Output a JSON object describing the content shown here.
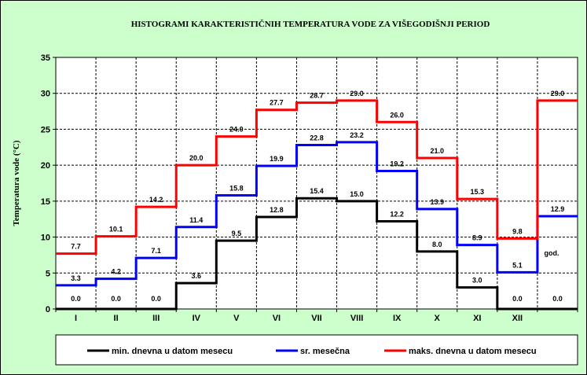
{
  "chart_data": {
    "type": "line",
    "step": true,
    "title": "HISTOGRAMI KARAKTERISTIČNIH TEMPERATURA VODE ZA VIŠEGODIŠNJI PERIOD",
    "ylabel": "Temperatura vode (°C)",
    "xlabel": "",
    "ylim": [
      0,
      35
    ],
    "yticks": [
      0,
      5,
      10,
      15,
      20,
      25,
      30,
      35
    ],
    "grid": true,
    "legend_position": "bottom",
    "categories": [
      "I",
      "II",
      "III",
      "IV",
      "V",
      "VI",
      "VII",
      "VIII",
      "IX",
      "X",
      "XI",
      "XII",
      ""
    ],
    "annual_label": "god.",
    "series": [
      {
        "name": "min. dnevna u datom mesecu",
        "color": "#000000",
        "values": [
          0.0,
          0.0,
          0.0,
          3.6,
          9.5,
          12.8,
          15.4,
          15.0,
          12.2,
          8.0,
          3.0,
          0.0,
          0.0
        ],
        "labels": [
          "0.0",
          "0.0",
          "0.0",
          "3.6",
          "9.5",
          "12.8",
          "15.4",
          "15.0",
          "12.2",
          "8.0",
          "3.0",
          "0.0",
          "0.0"
        ]
      },
      {
        "name": "sr. mesečna",
        "color": "#0000ff",
        "values": [
          3.3,
          4.2,
          7.1,
          11.4,
          15.8,
          19.9,
          22.8,
          23.2,
          19.2,
          13.9,
          8.9,
          5.1,
          12.9
        ],
        "labels": [
          "3.3",
          "4.2",
          "7.1",
          "11.4",
          "15.8",
          "19.9",
          "22.8",
          "23.2",
          "19.2",
          "13.9",
          "8.9",
          "5.1",
          "12.9"
        ]
      },
      {
        "name": "maks. dnevna u datom mesecu",
        "color": "#ff0000",
        "values": [
          7.7,
          10.1,
          14.2,
          20.0,
          24.0,
          27.7,
          28.7,
          29.0,
          26.0,
          21.0,
          15.3,
          9.8,
          29.0
        ],
        "labels": [
          "7.7",
          "10.1",
          "14.2",
          "20.0",
          "24.0",
          "27.7",
          "28.7",
          "29.0",
          "26.0",
          "21.0",
          "15.3",
          "9.8",
          "29.0"
        ]
      }
    ]
  }
}
